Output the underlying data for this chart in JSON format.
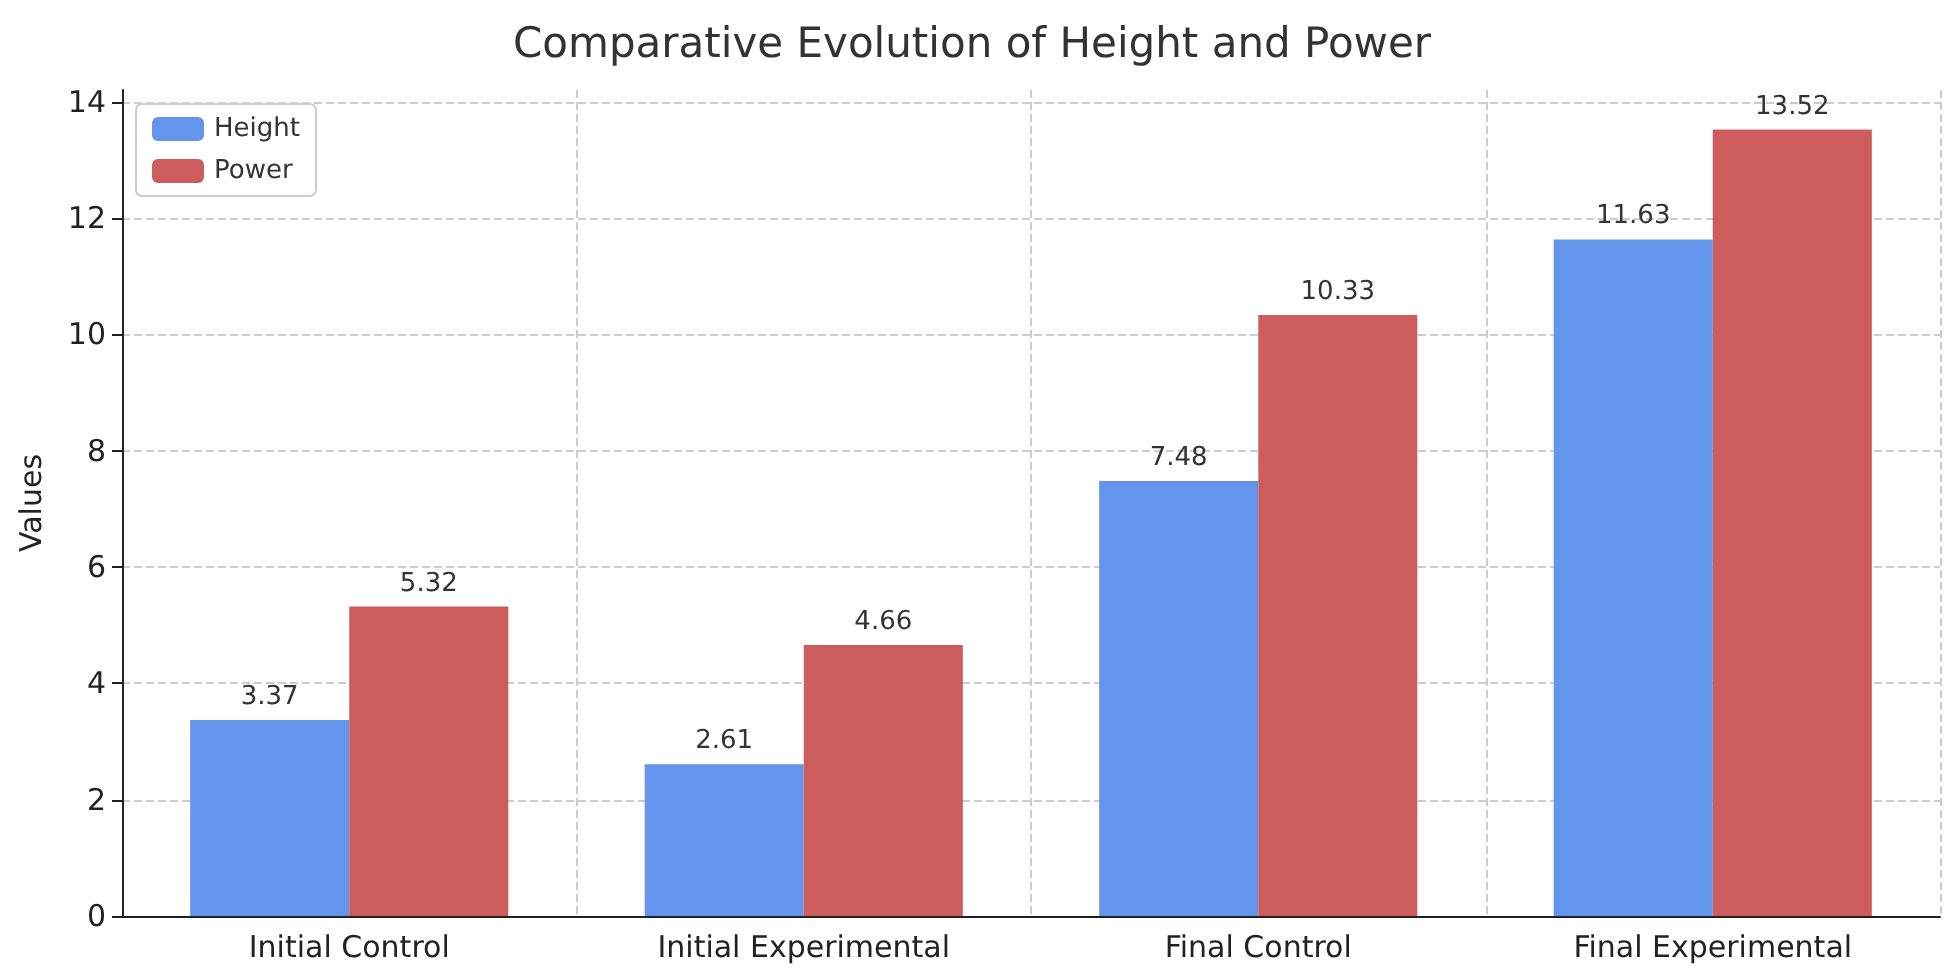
{
  "chart_data": {
    "type": "bar",
    "title": "Comparative Evolution of Height and Power",
    "ylabel": "Values",
    "categories": [
      "Initial Control",
      "Initial Experimental",
      "Final Control",
      "Final Experimental"
    ],
    "series": [
      {
        "name": "Height",
        "color": "#6495ed",
        "values": [
          3.37,
          2.61,
          7.48,
          11.63
        ]
      },
      {
        "name": "Power",
        "color": "#cd5c5c",
        "values": [
          5.32,
          4.66,
          10.33,
          13.52
        ]
      }
    ],
    "ylim": [
      0,
      14.2
    ],
    "yticks": [
      0,
      2,
      4,
      6,
      8,
      10,
      12,
      14
    ],
    "grid": true,
    "legend": "top left",
    "data_labels": true
  }
}
